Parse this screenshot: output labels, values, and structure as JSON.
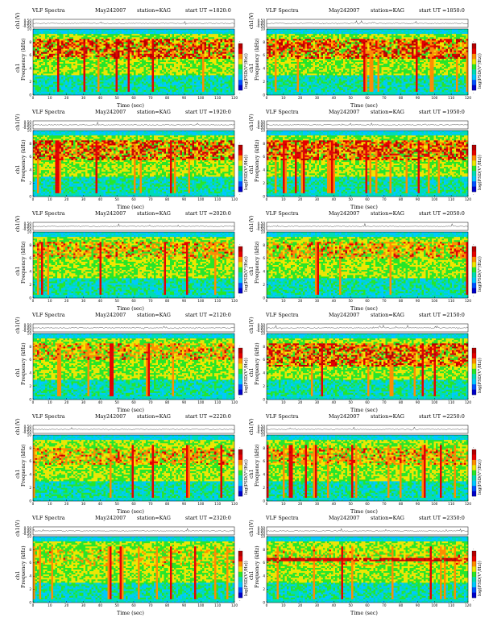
{
  "header": {
    "title": "VLF Spectra",
    "date": "May242007",
    "station": "station=KAG",
    "start_prefix": "start  UT ="
  },
  "labels": {
    "channel_axis": "ch1(V)",
    "freq_axis_line1": "ch1",
    "freq_axis_line2": "Frequency  (kHz)",
    "colorbar": "log(PSD(V²/Hz))",
    "time_axis": "Time (sec)"
  },
  "chart_data": [
    {
      "type": "heatmap",
      "start_ut": "1820:0",
      "xlim": [
        0,
        120
      ],
      "ylim": [
        0,
        10
      ],
      "xticks": [
        0,
        10,
        20,
        30,
        40,
        50,
        60,
        70,
        80,
        90,
        100,
        110,
        120
      ],
      "yticks": [
        0,
        2,
        4,
        6,
        8,
        10
      ],
      "waveform_yticks": [
        "0.50",
        "0.00",
        "-0.50"
      ],
      "colorbar_ticks": [
        "-",
        "-"
      ],
      "band_khz": [
        5.5,
        8.5
      ],
      "intensity": "high",
      "line": false
    },
    {
      "type": "heatmap",
      "start_ut": "1850:0",
      "xlim": [
        0,
        120
      ],
      "ylim": [
        0,
        10
      ],
      "xticks": [
        0,
        10,
        20,
        30,
        40,
        50,
        60,
        70,
        80,
        90,
        100,
        110,
        120
      ],
      "yticks": [
        0,
        2,
        4,
        6,
        8,
        10
      ],
      "waveform_yticks": [
        "0.50",
        "0.00",
        "-0.50"
      ],
      "colorbar_ticks": [
        "-",
        "-"
      ],
      "band_khz": [
        5.5,
        8.5
      ],
      "intensity": "high",
      "line": false
    },
    {
      "type": "heatmap",
      "start_ut": "1920:0",
      "xlim": [
        0,
        120
      ],
      "ylim": [
        0,
        10
      ],
      "xticks": [
        0,
        10,
        20,
        30,
        40,
        50,
        60,
        70,
        80,
        90,
        100,
        110,
        120
      ],
      "yticks": [
        0,
        2,
        4,
        6,
        8,
        10
      ],
      "waveform_yticks": [
        "0.50",
        "0.00",
        "-0.50"
      ],
      "colorbar_ticks": [
        "-",
        "-"
      ],
      "band_khz": [
        5.5,
        8.5
      ],
      "intensity": "high",
      "line": false
    },
    {
      "type": "heatmap",
      "start_ut": "1950:0",
      "xlim": [
        0,
        120
      ],
      "ylim": [
        0,
        10
      ],
      "xticks": [
        0,
        10,
        20,
        30,
        40,
        50,
        60,
        70,
        80,
        90,
        100,
        110,
        120
      ],
      "yticks": [
        0,
        2,
        4,
        6,
        8,
        10
      ],
      "waveform_yticks": [
        "0.50",
        "0.00",
        "-0.50"
      ],
      "colorbar_ticks": [
        "-",
        "-"
      ],
      "band_khz": [
        5.5,
        8.5
      ],
      "intensity": "high",
      "line": false
    },
    {
      "type": "heatmap",
      "start_ut": "2020:0",
      "xlim": [
        0,
        120
      ],
      "ylim": [
        0,
        10
      ],
      "xticks": [
        0,
        10,
        20,
        30,
        40,
        50,
        60,
        70,
        80,
        90,
        100,
        110,
        120
      ],
      "yticks": [
        0,
        2,
        4,
        6,
        8,
        10
      ],
      "waveform_yticks": [
        "0.50",
        "0.00",
        "-0.50"
      ],
      "colorbar_ticks": [
        "-",
        "-"
      ],
      "band_khz": [
        6.0,
        8.5
      ],
      "intensity": "medium",
      "line": false
    },
    {
      "type": "heatmap",
      "start_ut": "2050:0",
      "xlim": [
        0,
        120
      ],
      "ylim": [
        0,
        10
      ],
      "xticks": [
        0,
        10,
        20,
        30,
        40,
        50,
        60,
        70,
        80,
        90,
        100,
        110,
        120
      ],
      "yticks": [
        0,
        2,
        4,
        6,
        8,
        10
      ],
      "waveform_yticks": [
        "0.50",
        "0.00",
        "-0.50"
      ],
      "colorbar_ticks": [
        "-",
        "-"
      ],
      "band_khz": [
        6.0,
        8.5
      ],
      "intensity": "medium",
      "line": false
    },
    {
      "type": "heatmap",
      "start_ut": "2120:0",
      "xlim": [
        0,
        120
      ],
      "ylim": [
        0,
        10
      ],
      "xticks": [
        0,
        10,
        20,
        30,
        40,
        50,
        60,
        70,
        80,
        90,
        100,
        110,
        120
      ],
      "yticks": [
        0,
        2,
        4,
        6,
        8,
        10
      ],
      "waveform_yticks": [
        "0.50",
        "0.00",
        "-0.50"
      ],
      "colorbar_ticks": [
        "-",
        "-"
      ],
      "band_khz": [
        6.0,
        8.5
      ],
      "intensity": "medium",
      "line": false
    },
    {
      "type": "heatmap",
      "start_ut": "2150:0",
      "xlim": [
        0,
        120
      ],
      "ylim": [
        0,
        10
      ],
      "xticks": [
        0,
        10,
        20,
        30,
        40,
        50,
        60,
        70,
        80,
        90,
        100,
        110,
        120
      ],
      "yticks": [
        0,
        2,
        4,
        6,
        8,
        10
      ],
      "waveform_yticks": [
        "0.50",
        "0.00",
        "-0.50"
      ],
      "colorbar_ticks": [
        "-",
        "-"
      ],
      "band_khz": [
        5.0,
        8.5
      ],
      "intensity": "high",
      "line": false
    },
    {
      "type": "heatmap",
      "start_ut": "2220:0",
      "xlim": [
        0,
        120
      ],
      "ylim": [
        0,
        10
      ],
      "xticks": [
        0,
        10,
        20,
        30,
        40,
        50,
        60,
        70,
        80,
        90,
        100,
        110,
        120
      ],
      "yticks": [
        0,
        2,
        4,
        6,
        8,
        10
      ],
      "waveform_yticks": [
        "0.50",
        "0.00",
        "-0.50"
      ],
      "colorbar_ticks": [
        "-",
        "-"
      ],
      "band_khz": [
        5.5,
        8.0
      ],
      "intensity": "medium",
      "line": false
    },
    {
      "type": "heatmap",
      "start_ut": "2250:0",
      "xlim": [
        0,
        120
      ],
      "ylim": [
        0,
        10
      ],
      "xticks": [
        0,
        10,
        20,
        30,
        40,
        50,
        60,
        70,
        80,
        90,
        100,
        110,
        120
      ],
      "yticks": [
        0,
        2,
        4,
        6,
        8,
        10
      ],
      "waveform_yticks": [
        "0.50",
        "0.00",
        "-0.50"
      ],
      "colorbar_ticks": [
        "-",
        "-"
      ],
      "band_khz": [
        5.5,
        8.0
      ],
      "intensity": "medium",
      "line": false
    },
    {
      "type": "heatmap",
      "start_ut": "2320:0",
      "xlim": [
        0,
        120
      ],
      "ylim": [
        0,
        10
      ],
      "xticks": [
        0,
        10,
        20,
        30,
        40,
        50,
        60,
        70,
        80,
        90,
        100,
        110,
        120
      ],
      "yticks": [
        0,
        2,
        4,
        6,
        8,
        10
      ],
      "waveform_yticks": [
        "0.50",
        "0.00",
        "-0.50"
      ],
      "colorbar_ticks": [
        "-",
        "-"
      ],
      "band_khz": [
        5.5,
        8.0
      ],
      "intensity": "low",
      "line": false
    },
    {
      "type": "heatmap",
      "start_ut": "2350:0",
      "xlim": [
        0,
        120
      ],
      "ylim": [
        0,
        10
      ],
      "xticks": [
        0,
        10,
        20,
        30,
        40,
        50,
        60,
        70,
        80,
        90,
        100,
        110,
        120
      ],
      "yticks": [
        0,
        2,
        4,
        6,
        8,
        10
      ],
      "waveform_yticks": [
        "0.50",
        "0.00",
        "-0.50"
      ],
      "colorbar_ticks": [
        "-",
        "-"
      ],
      "band_khz": [
        5.5,
        8.0
      ],
      "intensity": "low",
      "line": true,
      "line_khz": 6.5
    }
  ],
  "colors": {
    "dark_blue": "#0000c8",
    "blue": "#0050ff",
    "cyan": "#00c8ff",
    "teal": "#00dcb4",
    "green": "#28e628",
    "yellow": "#f0e600",
    "orange": "#ff8c00",
    "red": "#e60000",
    "dark_red": "#b40000"
  }
}
